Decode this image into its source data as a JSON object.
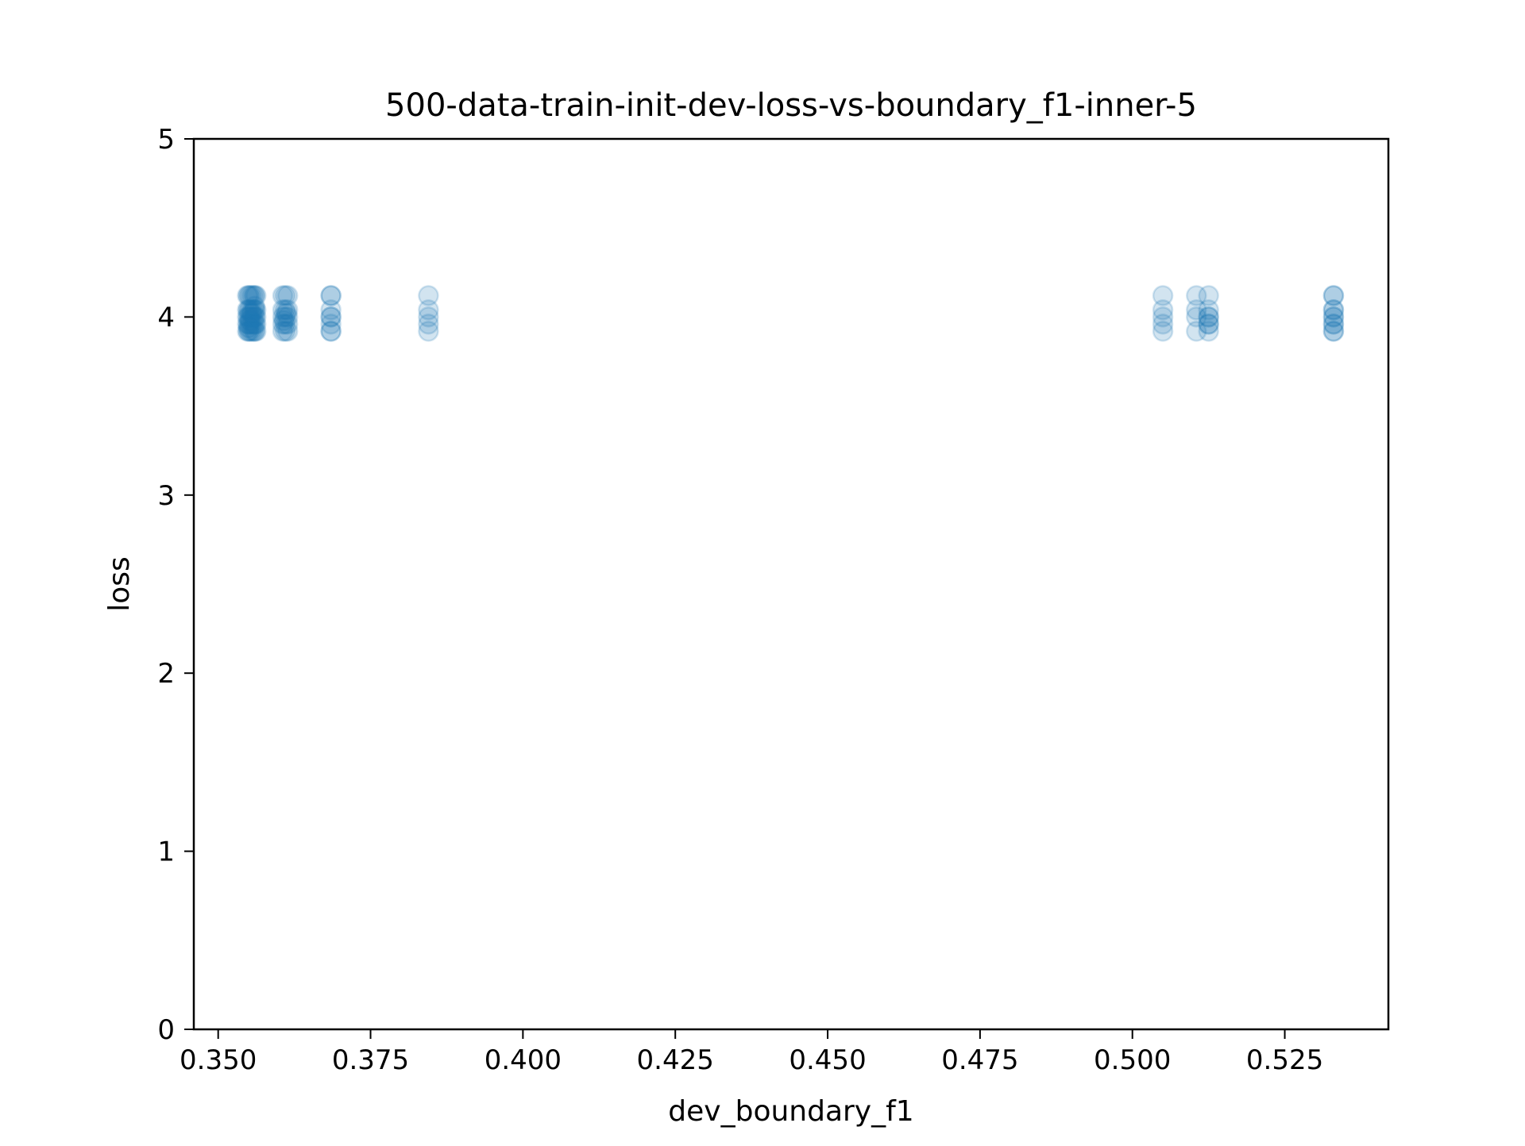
{
  "chart_data": {
    "type": "scatter",
    "title": "500-data-train-init-dev-loss-vs-boundary_f1-inner-5",
    "xlabel": "dev_boundary_f1",
    "ylabel": "loss",
    "xlim": [
      0.346,
      0.542
    ],
    "ylim": [
      0,
      5
    ],
    "x_ticks": [
      0.35,
      0.375,
      0.4,
      0.425,
      0.45,
      0.475,
      0.5,
      0.525
    ],
    "x_tick_labels": [
      "0.350",
      "0.375",
      "0.400",
      "0.425",
      "0.450",
      "0.475",
      "0.500",
      "0.525"
    ],
    "y_ticks": [
      0,
      1,
      2,
      3,
      4,
      5
    ],
    "y_tick_labels": [
      "0",
      "1",
      "2",
      "3",
      "4",
      "5"
    ],
    "grid": false,
    "marker_color": "#1f77b4",
    "marker_alpha": 0.2,
    "points": [
      {
        "x": 0.355,
        "y": 3.92
      },
      {
        "x": 0.355,
        "y": 3.96
      },
      {
        "x": 0.355,
        "y": 4.0
      },
      {
        "x": 0.355,
        "y": 4.04
      },
      {
        "x": 0.355,
        "y": 4.12
      },
      {
        "x": 0.3555,
        "y": 3.92
      },
      {
        "x": 0.3555,
        "y": 3.96
      },
      {
        "x": 0.3555,
        "y": 4.0
      },
      {
        "x": 0.3555,
        "y": 4.04
      },
      {
        "x": 0.3555,
        "y": 4.12
      },
      {
        "x": 0.356,
        "y": 3.92
      },
      {
        "x": 0.356,
        "y": 3.96
      },
      {
        "x": 0.356,
        "y": 4.0
      },
      {
        "x": 0.356,
        "y": 4.04
      },
      {
        "x": 0.356,
        "y": 4.12
      },
      {
        "x": 0.3552,
        "y": 3.92
      },
      {
        "x": 0.3552,
        "y": 3.96
      },
      {
        "x": 0.3552,
        "y": 4.0
      },
      {
        "x": 0.3552,
        "y": 4.04
      },
      {
        "x": 0.3552,
        "y": 4.12
      },
      {
        "x": 0.3558,
        "y": 3.92
      },
      {
        "x": 0.3558,
        "y": 3.96
      },
      {
        "x": 0.3558,
        "y": 4.0
      },
      {
        "x": 0.3558,
        "y": 4.04
      },
      {
        "x": 0.3558,
        "y": 4.12
      },
      {
        "x": 0.3548,
        "y": 3.92
      },
      {
        "x": 0.3548,
        "y": 3.96
      },
      {
        "x": 0.3548,
        "y": 4.0
      },
      {
        "x": 0.3548,
        "y": 4.04
      },
      {
        "x": 0.3548,
        "y": 4.12
      },
      {
        "x": 0.3562,
        "y": 3.92
      },
      {
        "x": 0.3562,
        "y": 3.96
      },
      {
        "x": 0.3562,
        "y": 4.0
      },
      {
        "x": 0.3562,
        "y": 4.04
      },
      {
        "x": 0.3562,
        "y": 4.12
      },
      {
        "x": 0.355,
        "y": 3.94
      },
      {
        "x": 0.3555,
        "y": 4.02
      },
      {
        "x": 0.356,
        "y": 4.06
      },
      {
        "x": 0.3552,
        "y": 3.98
      },
      {
        "x": 0.3606,
        "y": 3.92
      },
      {
        "x": 0.3606,
        "y": 3.96
      },
      {
        "x": 0.3606,
        "y": 4.0
      },
      {
        "x": 0.3606,
        "y": 4.04
      },
      {
        "x": 0.3606,
        "y": 4.12
      },
      {
        "x": 0.361,
        "y": 3.92
      },
      {
        "x": 0.361,
        "y": 3.96
      },
      {
        "x": 0.361,
        "y": 4.0
      },
      {
        "x": 0.361,
        "y": 4.04
      },
      {
        "x": 0.361,
        "y": 4.12
      },
      {
        "x": 0.3614,
        "y": 3.92
      },
      {
        "x": 0.3614,
        "y": 3.96
      },
      {
        "x": 0.3614,
        "y": 4.0
      },
      {
        "x": 0.3614,
        "y": 4.04
      },
      {
        "x": 0.3614,
        "y": 4.12
      },
      {
        "x": 0.3608,
        "y": 3.98
      },
      {
        "x": 0.3612,
        "y": 4.02
      },
      {
        "x": 0.3685,
        "y": 3.92
      },
      {
        "x": 0.3685,
        "y": 3.96
      },
      {
        "x": 0.3685,
        "y": 4.0
      },
      {
        "x": 0.3685,
        "y": 4.04
      },
      {
        "x": 0.3685,
        "y": 4.12
      },
      {
        "x": 0.3685,
        "y": 3.92
      },
      {
        "x": 0.3685,
        "y": 4.0
      },
      {
        "x": 0.3685,
        "y": 4.12
      },
      {
        "x": 0.3845,
        "y": 3.92
      },
      {
        "x": 0.3845,
        "y": 3.96
      },
      {
        "x": 0.3845,
        "y": 4.0
      },
      {
        "x": 0.3845,
        "y": 4.04
      },
      {
        "x": 0.3845,
        "y": 4.12
      },
      {
        "x": 0.505,
        "y": 3.92
      },
      {
        "x": 0.505,
        "y": 3.96
      },
      {
        "x": 0.505,
        "y": 4.0
      },
      {
        "x": 0.505,
        "y": 4.04
      },
      {
        "x": 0.505,
        "y": 4.12
      },
      {
        "x": 0.5105,
        "y": 3.92
      },
      {
        "x": 0.5105,
        "y": 4.0
      },
      {
        "x": 0.5105,
        "y": 4.04
      },
      {
        "x": 0.5105,
        "y": 4.12
      },
      {
        "x": 0.5125,
        "y": 3.92
      },
      {
        "x": 0.5125,
        "y": 3.96
      },
      {
        "x": 0.5125,
        "y": 4.0
      },
      {
        "x": 0.5125,
        "y": 4.04
      },
      {
        "x": 0.5125,
        "y": 4.12
      },
      {
        "x": 0.5125,
        "y": 3.96
      },
      {
        "x": 0.5125,
        "y": 4.0
      },
      {
        "x": 0.533,
        "y": 3.92
      },
      {
        "x": 0.533,
        "y": 3.96
      },
      {
        "x": 0.533,
        "y": 4.0
      },
      {
        "x": 0.533,
        "y": 4.04
      },
      {
        "x": 0.533,
        "y": 4.12
      },
      {
        "x": 0.533,
        "y": 3.92
      },
      {
        "x": 0.533,
        "y": 3.96
      },
      {
        "x": 0.533,
        "y": 4.0
      },
      {
        "x": 0.533,
        "y": 4.04
      },
      {
        "x": 0.533,
        "y": 4.12
      }
    ]
  }
}
